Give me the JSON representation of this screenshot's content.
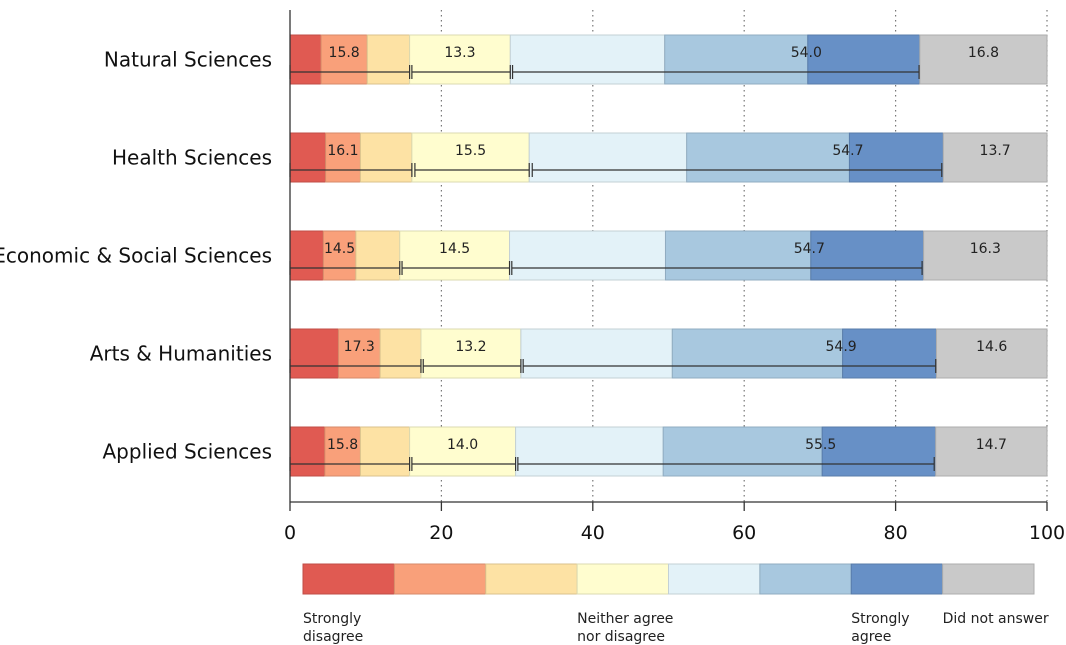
{
  "chart_data": {
    "type": "bar",
    "orientation": "horizontal",
    "stacked": true,
    "categories": [
      "Natural Sciences",
      "Health Sciences",
      "Economic & Social Sciences",
      "Arts & Humanities",
      "Applied Sciences"
    ],
    "segment_colors": [
      "#e05a52",
      "#f9a07a",
      "#fde2a4",
      "#fffdcf",
      "#e3f2f8",
      "#a8c8df",
      "#6790c6",
      "#c9c9c9"
    ],
    "segments": [
      [
        4.1,
        6.1,
        5.6,
        13.3,
        20.4,
        18.9,
        14.8,
        16.8
      ],
      [
        4.7,
        4.6,
        6.8,
        15.5,
        20.8,
        21.5,
        12.4,
        13.7
      ],
      [
        4.4,
        4.3,
        5.8,
        14.5,
        20.6,
        19.2,
        14.9,
        16.3
      ],
      [
        6.4,
        5.5,
        5.4,
        13.2,
        20.0,
        22.5,
        12.4,
        14.6
      ],
      [
        4.6,
        4.7,
        6.5,
        14.0,
        19.5,
        21.0,
        15.0,
        14.7
      ]
    ],
    "group_labels": [
      [
        "15.8",
        "13.3",
        "54.0",
        "16.8"
      ],
      [
        "16.1",
        "15.5",
        "54.7",
        "13.7"
      ],
      [
        "14.5",
        "14.5",
        "54.7",
        "16.3"
      ],
      [
        "17.3",
        "13.2",
        "54.9",
        "14.6"
      ],
      [
        "15.8",
        "14.0",
        "55.5",
        "14.7"
      ]
    ],
    "group_brackets": [
      [
        [
          0,
          15.8
        ],
        [
          16.1,
          29.1
        ],
        [
          29.4,
          83.1
        ]
      ],
      [
        [
          0,
          16.1
        ],
        [
          16.5,
          31.6
        ],
        [
          32.0,
          86.1
        ]
      ],
      [
        [
          0,
          14.5
        ],
        [
          14.8,
          29.0
        ],
        [
          29.3,
          83.5
        ]
      ],
      [
        [
          0,
          17.3
        ],
        [
          17.6,
          30.5
        ],
        [
          30.8,
          85.3
        ]
      ],
      [
        [
          0,
          15.8
        ],
        [
          16.1,
          29.8
        ],
        [
          30.1,
          85.1
        ]
      ]
    ],
    "xlim": [
      0,
      100
    ],
    "xticks": [
      0,
      20,
      40,
      60,
      80,
      100
    ],
    "grid": true,
    "legend": {
      "placement": "bottom",
      "colors": [
        "#e05a52",
        "#f9a07a",
        "#fde2a4",
        "#fffdcf",
        "#e3f2f8",
        "#a8c8df",
        "#6790c6",
        "#c9c9c9"
      ],
      "labels": [
        {
          "text": [
            "Strongly",
            "disagree"
          ],
          "index": 0
        },
        {
          "text": [
            "Neither agree",
            "nor disagree"
          ],
          "index": 3
        },
        {
          "text": [
            "Strongly",
            "agree"
          ],
          "index": 6
        },
        {
          "text": [
            "Did not answer"
          ],
          "index": 7
        }
      ]
    }
  }
}
